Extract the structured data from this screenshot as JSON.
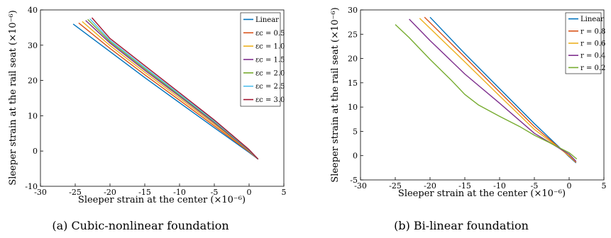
{
  "figure": {
    "panels": [
      {
        "caption": "(a) Cubic-nonlinear foundation",
        "xlabel": "Sleeper strain at the center (×10⁻⁶)",
        "ylabel": "Sleeper strain at the rail seat (×10⁻⁶)",
        "xlim": [
          -30,
          5
        ],
        "ylim": [
          -10,
          40
        ],
        "xticks": [
          "-30",
          "-25",
          "-20",
          "-15",
          "-10",
          "-5",
          "0",
          "5"
        ],
        "yticks": [
          "-10",
          "0",
          "10",
          "20",
          "30",
          "40"
        ]
      },
      {
        "caption": "(b) Bi-linear foundation",
        "xlabel": "Sleeper strain at the center (×10⁻⁶)",
        "ylabel": "Sleeper strain at the rail seat (×10⁻⁶)",
        "xlim": [
          -30,
          5
        ],
        "ylim": [
          -5,
          30
        ],
        "xticks": [
          "-30",
          "-25",
          "-20",
          "-15",
          "-10",
          "-5",
          "0",
          "5"
        ],
        "yticks": [
          "-5",
          "0",
          "5",
          "10",
          "15",
          "20",
          "25",
          "30"
        ]
      }
    ]
  },
  "chart_data": [
    {
      "type": "line",
      "title": "(a) Cubic-nonlinear foundation",
      "xlabel": "Sleeper strain at the center (×10⁻⁶)",
      "ylabel": "Sleeper strain at the rail seat (×10⁻⁶)",
      "xlim": [
        -30,
        5
      ],
      "ylim": [
        -10,
        40
      ],
      "legend_position": "top-right",
      "series": [
        {
          "name": "Linear",
          "color": "#0072BD",
          "x": [
            -25.3,
            -20,
            -15,
            -10,
            -5,
            0,
            1.3
          ],
          "y": [
            36,
            28.2,
            20.8,
            13.7,
            6.6,
            -0.4,
            -2.3
          ]
        },
        {
          "name": "εc = 0.5",
          "color": "#D95319",
          "x": [
            -24.5,
            -20,
            -15,
            -10,
            -5,
            0,
            1.3
          ],
          "y": [
            36.3,
            29.1,
            21.6,
            14.4,
            7.1,
            -0.2,
            -2.3
          ]
        },
        {
          "name": "εc = 1.0",
          "color": "#EDB120",
          "x": [
            -24,
            -20,
            -15,
            -10,
            -5,
            0,
            1.3
          ],
          "y": [
            36.7,
            29.9,
            22.3,
            15,
            7.6,
            0,
            -2.3
          ]
        },
        {
          "name": "εc = 1.5",
          "color": "#7E2F8E",
          "x": [
            -23.5,
            -20,
            -15,
            -10,
            -5,
            0,
            1.3
          ],
          "y": [
            37,
            30.6,
            22.9,
            15.5,
            8,
            0.1,
            -2.3
          ]
        },
        {
          "name": "εc = 2.0",
          "color": "#77AC30",
          "x": [
            -23.2,
            -20,
            -15,
            -10,
            -5,
            0,
            1.3
          ],
          "y": [
            37.3,
            31,
            23.3,
            15.8,
            8.3,
            0.2,
            -2.3
          ]
        },
        {
          "name": "εc = 2.5",
          "color": "#4DBEEE",
          "x": [
            -22.9,
            -20,
            -15,
            -10,
            -5,
            0,
            1.3
          ],
          "y": [
            37.5,
            31.4,
            23.7,
            16.1,
            8.5,
            0.3,
            -2.3
          ]
        },
        {
          "name": "εc = 3.0",
          "color": "#A2142F",
          "x": [
            -22.6,
            -20,
            -15,
            -10,
            -5,
            0,
            1.3
          ],
          "y": [
            37.8,
            31.9,
            24.2,
            16.5,
            8.8,
            0.4,
            -2.3
          ]
        }
      ]
    },
    {
      "type": "line",
      "title": "(b) Bi-linear foundation",
      "xlabel": "Sleeper strain at the center (×10⁻⁶)",
      "ylabel": "Sleeper strain at the rail seat (×10⁻⁶)",
      "xlim": [
        -30,
        5
      ],
      "ylim": [
        -5,
        30
      ],
      "legend_position": "top-right",
      "series": [
        {
          "name": "Linear",
          "color": "#0072BD",
          "x": [
            -20,
            -15,
            -10,
            -5,
            0,
            1
          ],
          "y": [
            28.5,
            21,
            13.8,
            6.6,
            -0.2,
            -1.5
          ]
        },
        {
          "name": "r = 0.8",
          "color": "#D95319",
          "x": [
            -20.8,
            -15,
            -10,
            -5,
            0,
            1
          ],
          "y": [
            28.5,
            20.3,
            13.1,
            6,
            -0.1,
            -1.4
          ]
        },
        {
          "name": "r = 0.6",
          "color": "#EDB120",
          "x": [
            -21.5,
            -15,
            -10,
            -5,
            0,
            1
          ],
          "y": [
            28.3,
            19.3,
            12.3,
            5.4,
            0,
            -1.3
          ]
        },
        {
          "name": "r = 0.4",
          "color": "#7E2F8E",
          "x": [
            -23,
            -20,
            -15,
            -10,
            -5,
            0,
            1
          ],
          "y": [
            28.1,
            23.7,
            16.8,
            10.8,
            4.6,
            0.3,
            -1.2
          ]
        },
        {
          "name": "r = 0.2",
          "color": "#77AC30",
          "x": [
            -25,
            -23,
            -20,
            -17,
            -15,
            -13,
            -10,
            -7,
            -5,
            -3,
            0,
            1.1
          ],
          "y": [
            27,
            24.3,
            19.8,
            15.6,
            12.6,
            10.4,
            8.1,
            5.9,
            4.2,
            2.8,
            0.6,
            -0.7
          ]
        }
      ]
    }
  ]
}
